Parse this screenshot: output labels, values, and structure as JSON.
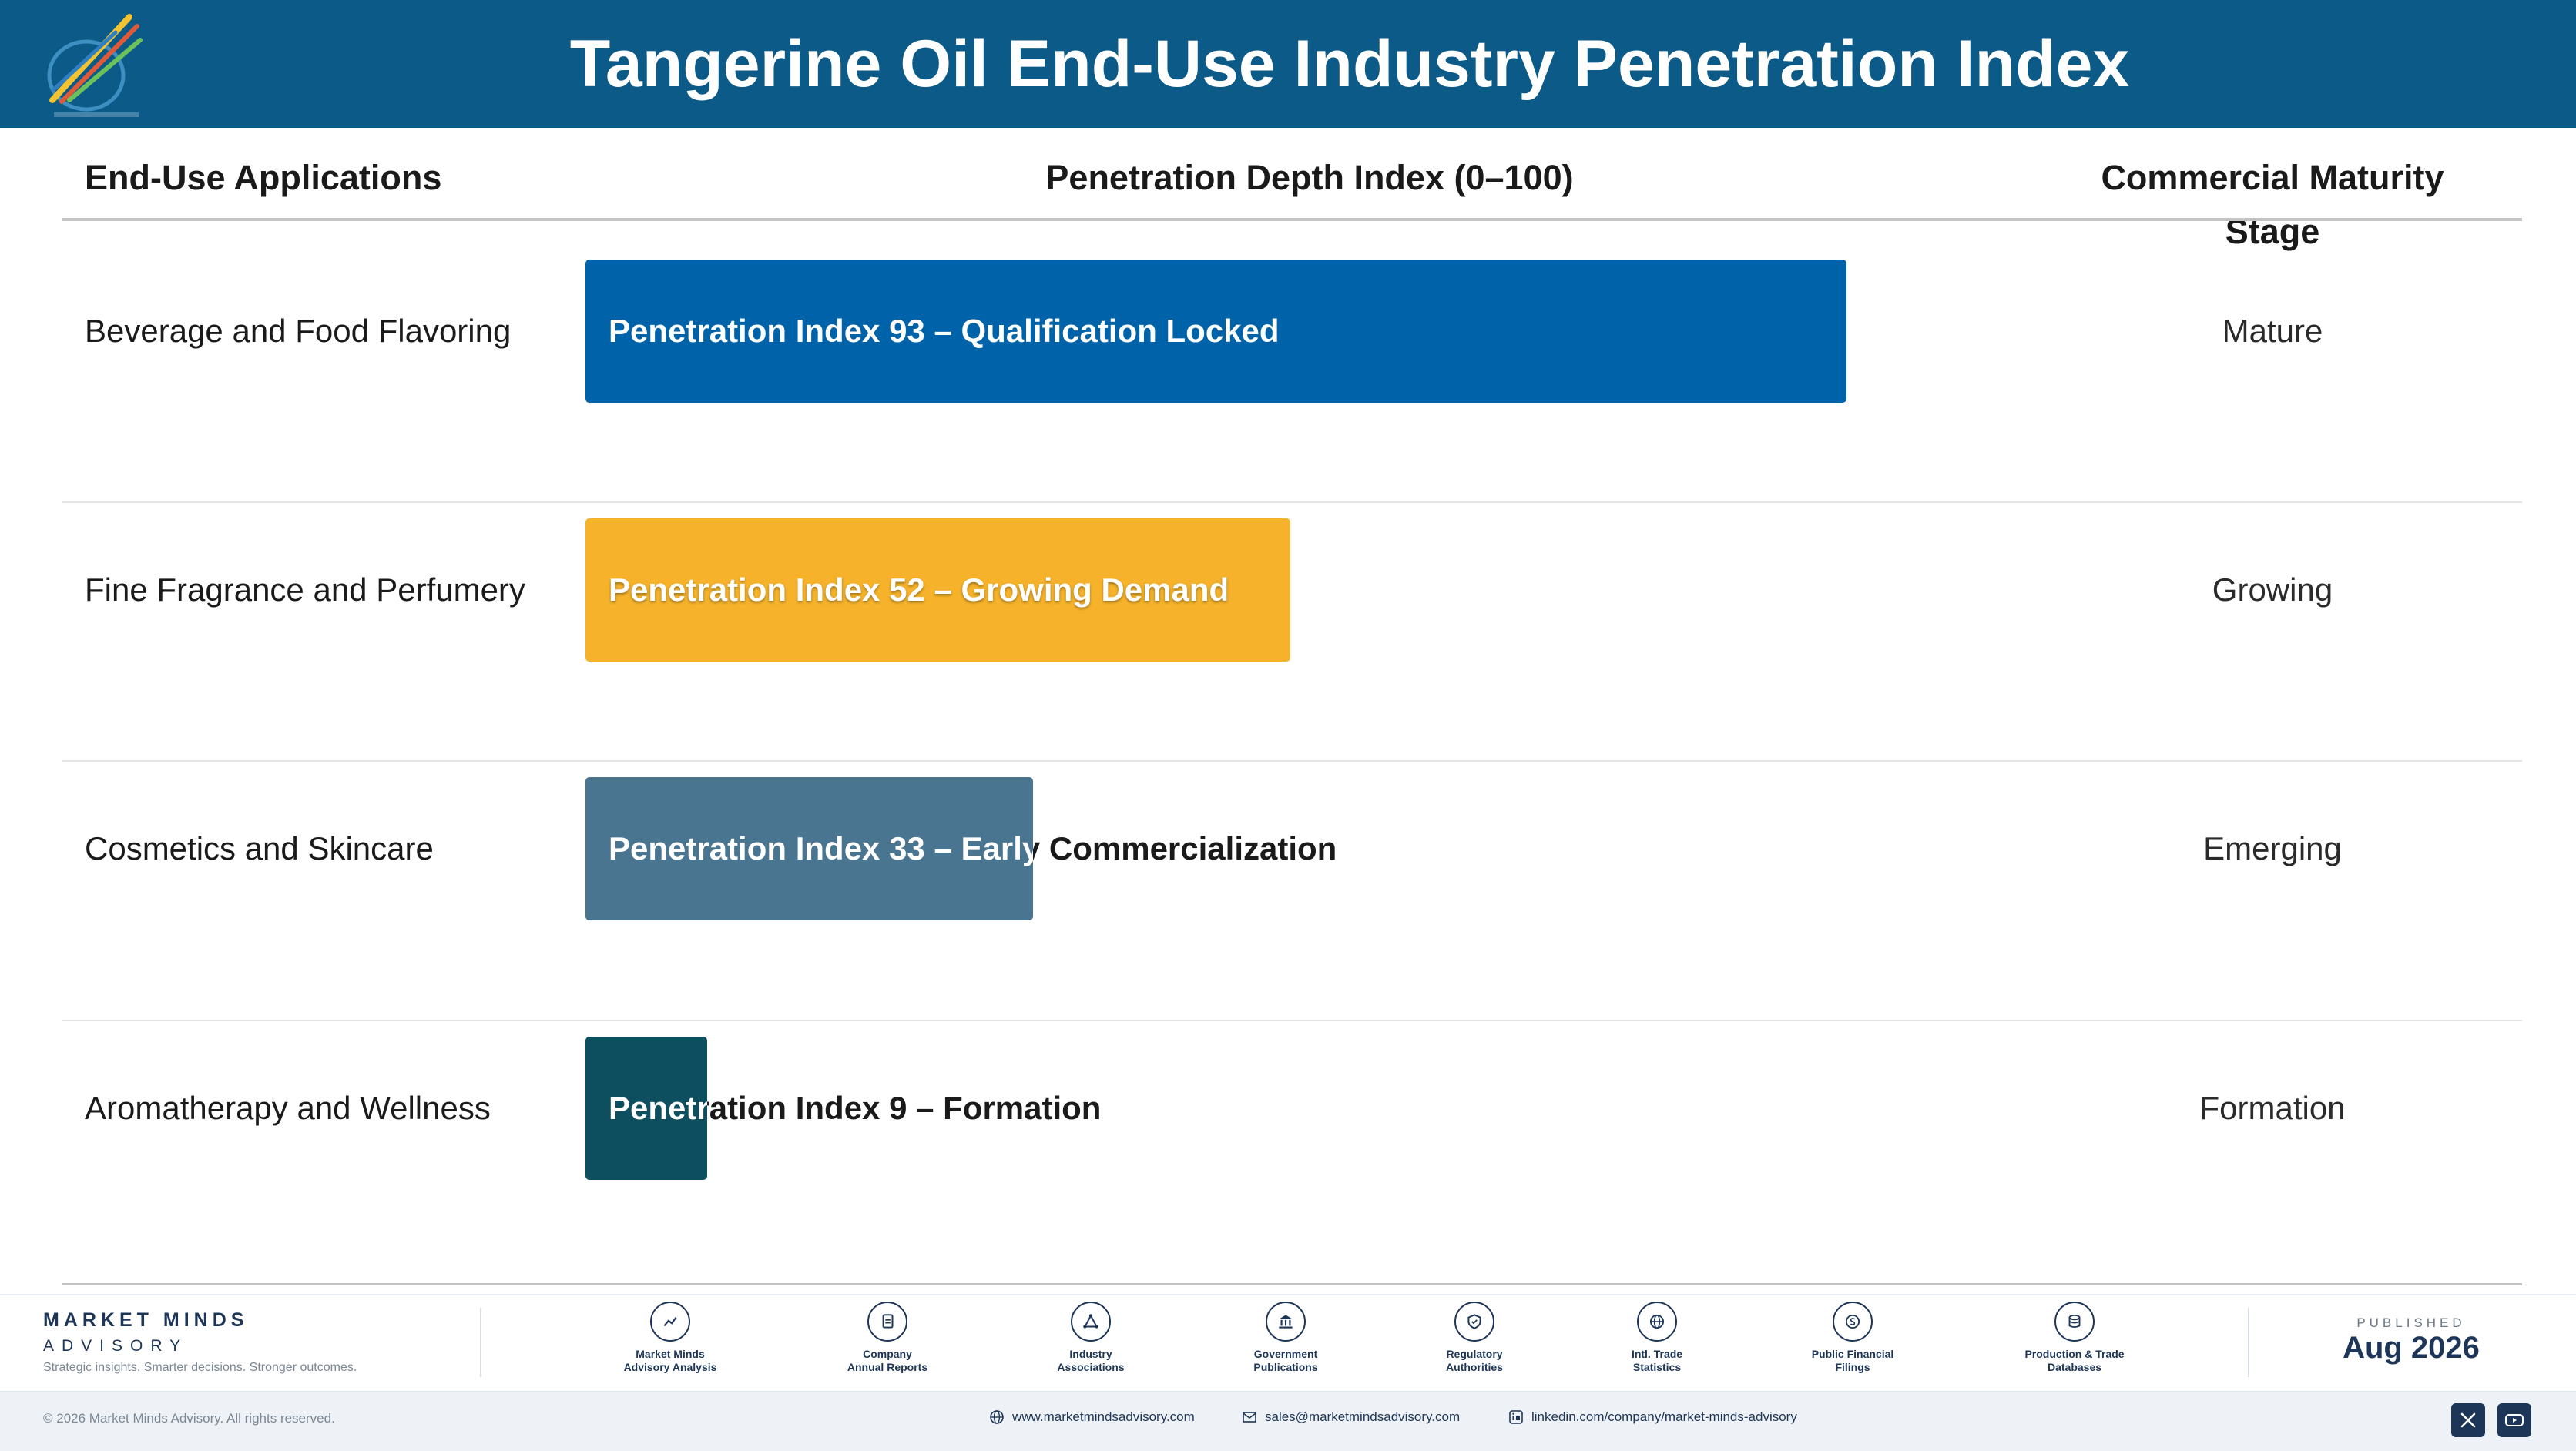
{
  "header": {
    "title": "Tangerine Oil End-Use Industry Penetration Index"
  },
  "columns": {
    "applications": "End-Use Applications",
    "index": "Penetration Depth Index (0–100)",
    "stage": "Commercial Maturity Stage"
  },
  "chart_data": {
    "type": "bar",
    "orientation": "horizontal",
    "title": "Tangerine Oil End-Use Industry Penetration Index",
    "xlim": [
      0,
      100
    ],
    "categories": [
      "Beverage and Food Flavoring",
      "Fine Fragrance and Perfumery",
      "Cosmetics and Skincare",
      "Aromatherapy and Wellness"
    ],
    "values": [
      93,
      52,
      33,
      9
    ],
    "bar_labels": [
      "Penetration Index 93 – Qualification Locked",
      "Penetration Index 52 – Growing Demand",
      "Penetration Index 33 – Early Commercialization",
      "Penetration Index 9 – Formation"
    ],
    "stages": [
      "Mature",
      "Growing",
      "Emerging",
      "Formation"
    ],
    "colors": [
      "#0062a8",
      "#f5b22a",
      "#4a7590",
      "#0d4f5e"
    ]
  },
  "footer": {
    "brand_name": "MARKET MINDS",
    "brand_sub": "ADVISORY",
    "tagline": "Strategic insights. Smarter decisions. Stronger outcomes.",
    "sources": [
      {
        "line1": "Market Minds",
        "line2": "Advisory Analysis",
        "icon": "chart-line-icon"
      },
      {
        "line1": "Company",
        "line2": "Annual Reports",
        "icon": "document-icon"
      },
      {
        "line1": "Industry",
        "line2": "Associations",
        "icon": "network-icon"
      },
      {
        "line1": "Government",
        "line2": "Publications",
        "icon": "building-icon"
      },
      {
        "line1": "Regulatory",
        "line2": "Authorities",
        "icon": "shield-icon"
      },
      {
        "line1": "Intl. Trade",
        "line2": "Statistics",
        "icon": "globe-icon"
      },
      {
        "line1": "Public Financial",
        "line2": "Filings",
        "icon": "coin-icon"
      },
      {
        "line1": "Production & Trade",
        "line2": "Databases",
        "icon": "database-icon"
      }
    ],
    "published_label": "PUBLISHED",
    "published_date": "Aug 2026",
    "copyright": "© 2026 Market Minds Advisory. All rights reserved.",
    "website": "www.marketmindsadvisory.com",
    "email": "sales@marketmindsadvisory.com",
    "linkedin": "linkedin.com/company/market-minds-advisory"
  }
}
